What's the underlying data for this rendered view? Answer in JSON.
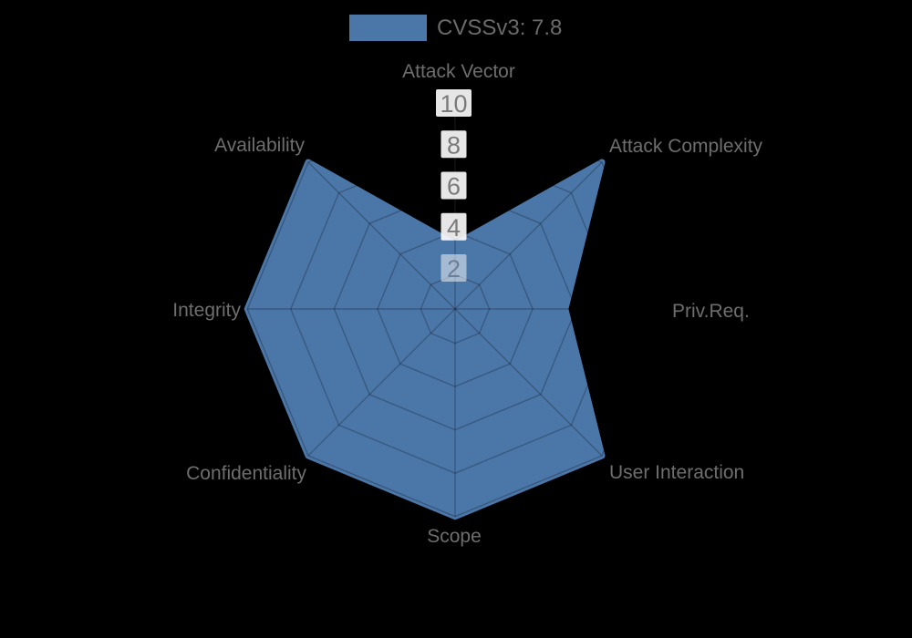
{
  "legend": {
    "label": "CVSSv3: 7.8"
  },
  "chart_data": {
    "type": "radar",
    "title": "",
    "categories": [
      "Attack Vector",
      "Attack Complexity",
      "Priv.Req.",
      "User Interaction",
      "Scope",
      "Confidentiality",
      "Integrity",
      "Availability"
    ],
    "series": [
      {
        "name": "CVSSv3: 7.8",
        "values": [
          3.4,
          10,
          5.5,
          10,
          10,
          10,
          10,
          10
        ]
      }
    ],
    "radial_ticks": [
      2,
      4,
      6,
      8,
      10
    ],
    "rmax": 10,
    "grid": true,
    "legend_position": "top"
  },
  "colors": {
    "background": "#000000",
    "fill": "#4b76a8",
    "grid_line": "rgba(0,0,0,0.24)",
    "axis_label_text": "#6e6e6e",
    "tick_text": "#7a7a7a",
    "tick_text_inner": "#6d7f94",
    "tick_box": "#ffffff",
    "legend_text": "#6a6a6a"
  }
}
